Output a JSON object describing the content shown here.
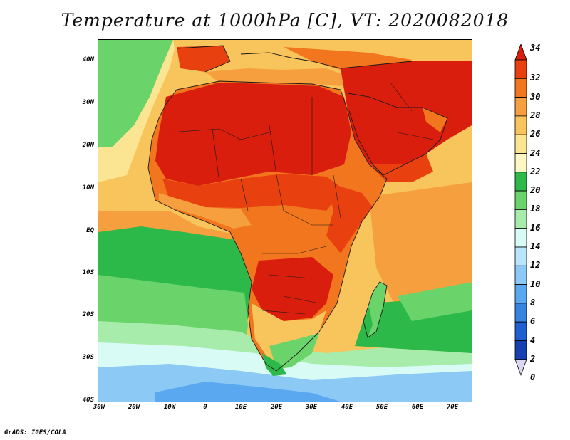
{
  "title": "Temperature at 1000hPa [C], VT: 2020082018",
  "credit": "GrADS: IGES/COLA",
  "lat_labels": [
    "40N",
    "30N",
    "20N",
    "10N",
    "EQ",
    "10S",
    "20S",
    "30S",
    "40S"
  ],
  "lon_labels": [
    "30W",
    "20W",
    "10W",
    "0",
    "10E",
    "20E",
    "30E",
    "40E",
    "50E",
    "60E",
    "70E"
  ],
  "colorbar": {
    "labels": [
      "34",
      "32",
      "30",
      "28",
      "26",
      "24",
      "22",
      "20",
      "18",
      "16",
      "14",
      "12",
      "10",
      "8",
      "6",
      "4",
      "2",
      "0"
    ],
    "colors": [
      "#d91e0e",
      "#e8410f",
      "#f2761e",
      "#f69f3e",
      "#f8c45c",
      "#fbe592",
      "#fdf7c3",
      "#2db84a",
      "#6ad46a",
      "#a8ecab",
      "#d9fbf6",
      "#b9e5fa",
      "#8cc9f5",
      "#5aa8ef",
      "#3783e2",
      "#1f5fd0",
      "#1740b0",
      "#0e1f7a"
    ]
  },
  "map_colors": {
    "ocean_warm": "#f8c45c",
    "ocean_green": "#2db84a",
    "ocean_light": "#6ad46a",
    "ocean_pale": "#a8ecab",
    "ocean_cyan": "#d9fbf6",
    "ocean_blue": "#8cc9f5",
    "ocean_deep": "#5aa8ef",
    "land_hot": "#d91e0e",
    "land_warm": "#e8410f",
    "land_mid": "#f2761e",
    "land_cool": "#f69f3e",
    "yellow": "#fbe592",
    "border": "#1a1a1a"
  }
}
